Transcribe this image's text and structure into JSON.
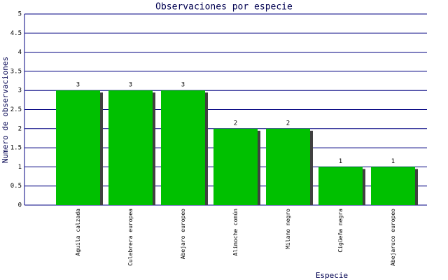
{
  "chart_data": {
    "type": "bar",
    "title": "Observaciones por especie",
    "x_label": "Especie",
    "y_label": "Numero de observaciones",
    "categories": [
      "Aguila calzada",
      "Culebrera europea",
      "Abejaro europeo",
      "Alimoche común",
      "Milano negro",
      "Cigüeña negra",
      "Abejaruco europeo"
    ],
    "values": [
      3,
      3,
      3,
      2,
      2,
      1,
      1
    ],
    "color": "#00c000",
    "ylim": [
      0,
      5
    ],
    "yticks": [
      0,
      0.5,
      1,
      1.5,
      2,
      2.5,
      3,
      3.5,
      4,
      4.5,
      5
    ],
    "grid": true
  }
}
